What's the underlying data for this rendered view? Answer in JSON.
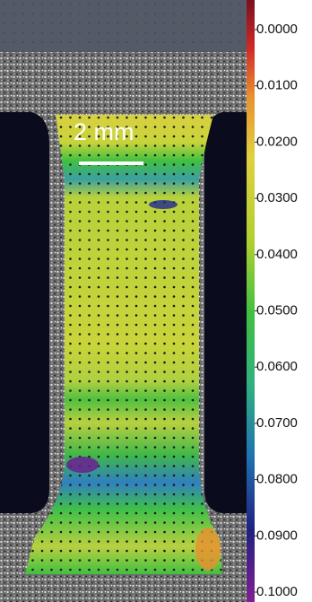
{
  "scale_bar": {
    "label": "2 mm"
  },
  "colorbar": {
    "ticks": [
      {
        "value": 0,
        "label": "0.0000"
      },
      {
        "value": 0.01,
        "label": "0.0100"
      },
      {
        "value": 0.02,
        "label": "0.0200"
      },
      {
        "value": 0.03,
        "label": "0.0300"
      },
      {
        "value": 0.04,
        "label": "0.0400"
      },
      {
        "value": 0.05,
        "label": "0.0500"
      },
      {
        "value": 0.06,
        "label": "0.0600"
      },
      {
        "value": 0.07,
        "label": "0.0700"
      },
      {
        "value": 0.08,
        "label": "0.0800"
      },
      {
        "value": 0.09,
        "label": "0.0900"
      },
      {
        "value": 0.1,
        "label": "0.1000"
      }
    ]
  }
}
